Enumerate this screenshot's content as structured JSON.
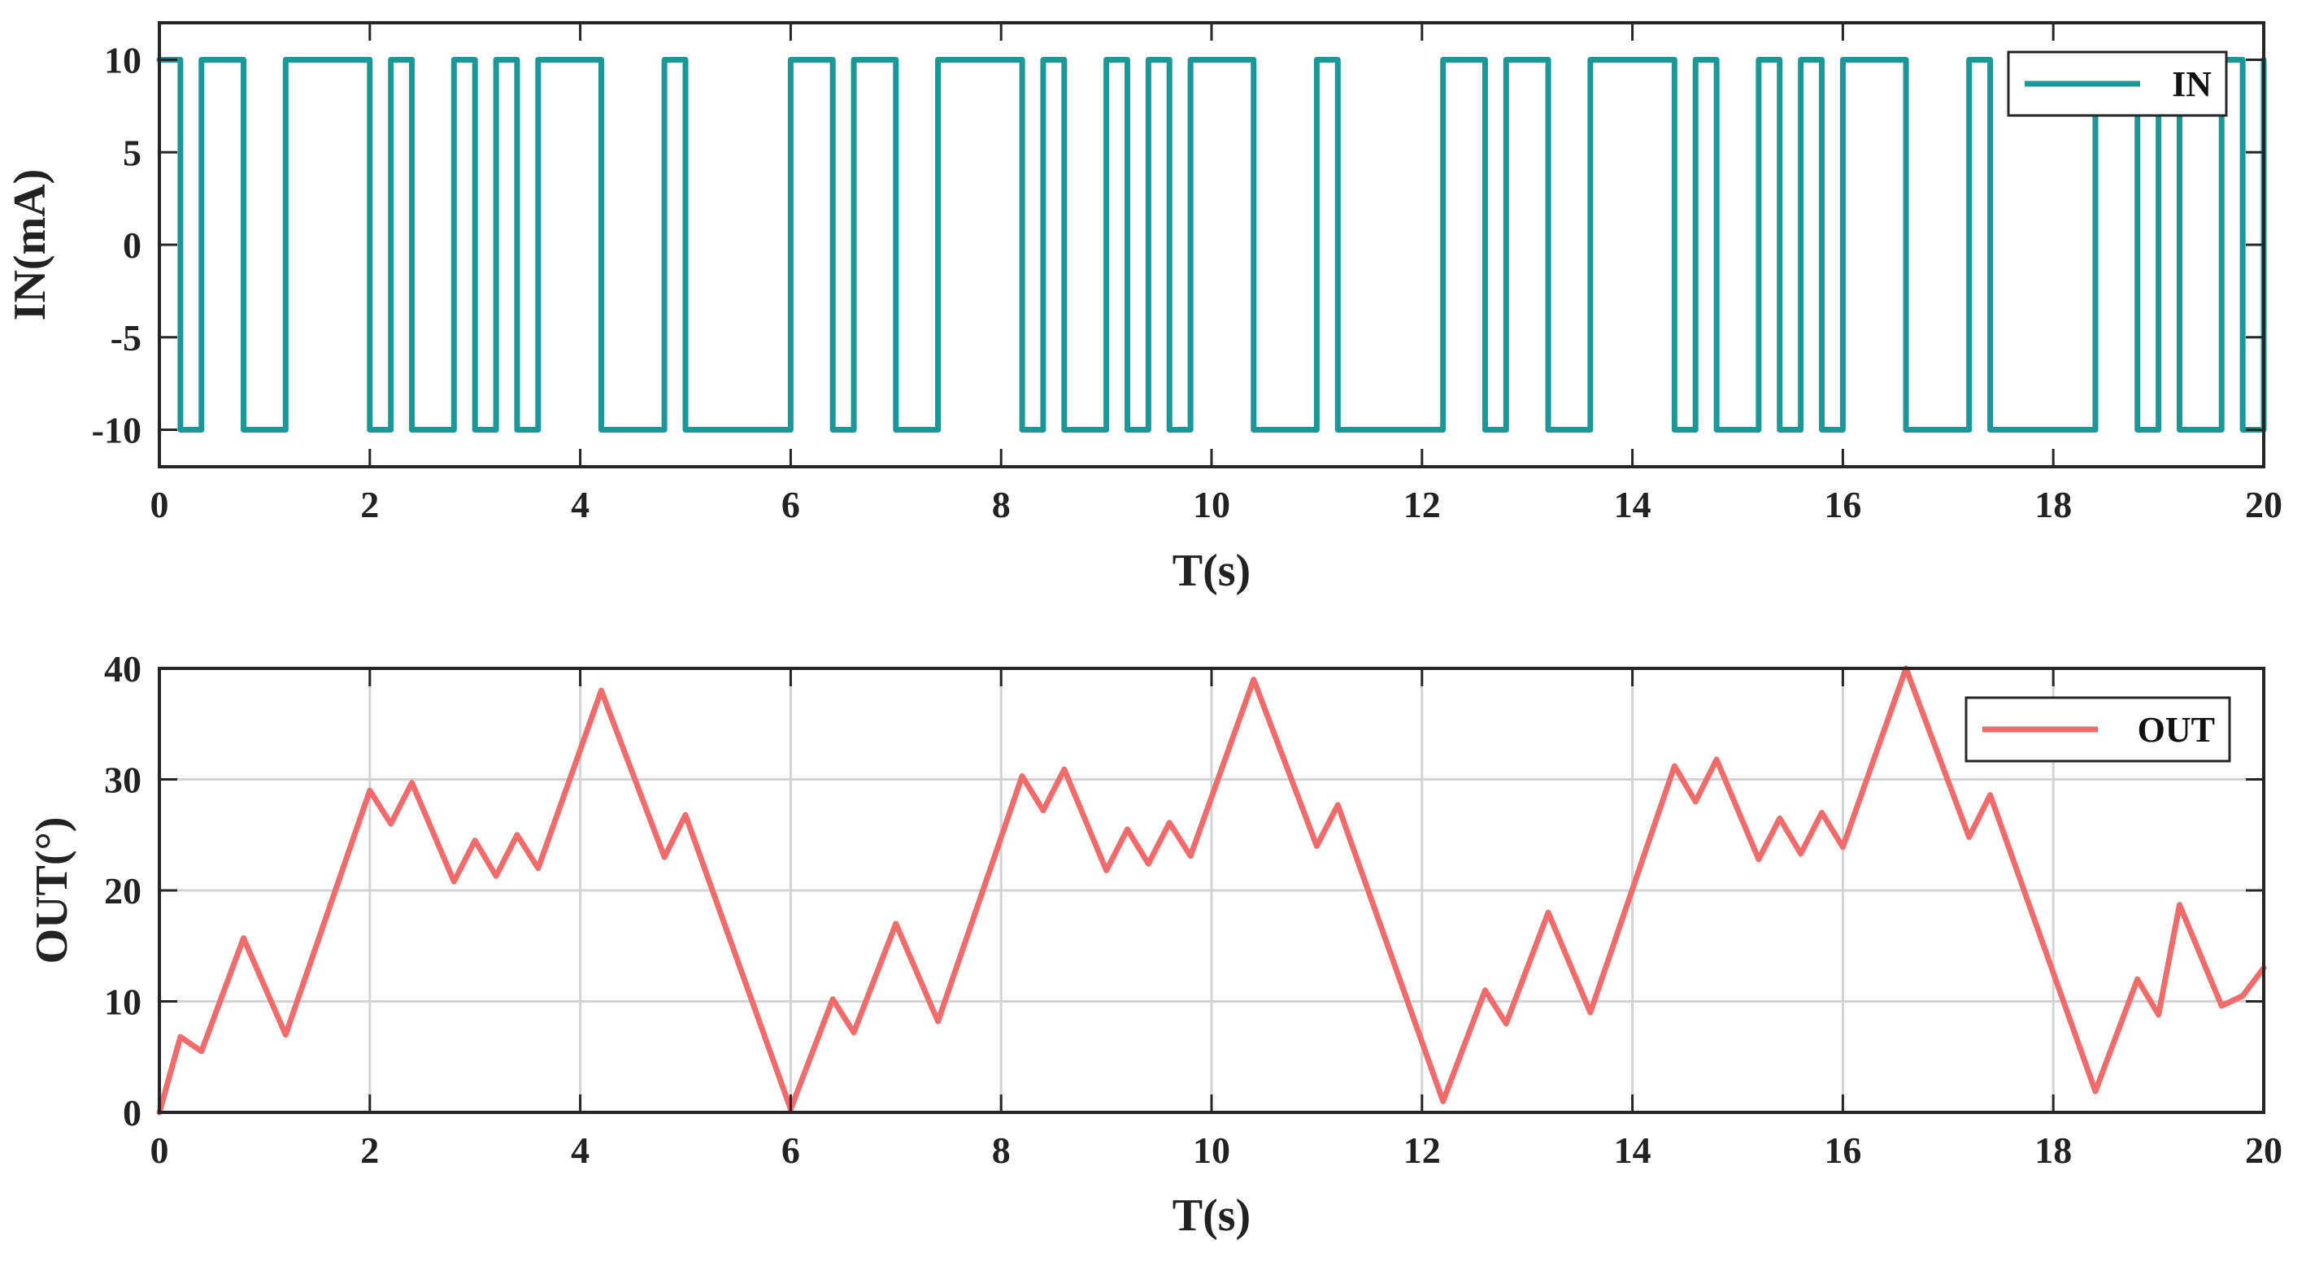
{
  "chart_data": [
    {
      "type": "line",
      "xlabel": "T(s)",
      "ylabel": "IN(mA)",
      "xlim": [
        0,
        20
      ],
      "ylim": [
        -12,
        12
      ],
      "xticks": [
        0,
        2,
        4,
        6,
        8,
        10,
        12,
        14,
        16,
        18,
        20
      ],
      "yticks": [
        -10,
        -5,
        0,
        5,
        10
      ],
      "grid": false,
      "legend_position": "top-right",
      "step": true,
      "series": [
        {
          "name": "IN",
          "color": "#1b9797",
          "x": [
            0,
            0.2,
            0.4,
            0.8,
            1.2,
            2.0,
            2.2,
            2.4,
            2.8,
            3.0,
            3.2,
            3.4,
            3.6,
            4.2,
            4.8,
            5.0,
            6.0,
            6.4,
            6.6,
            7.0,
            7.4,
            8.2,
            8.4,
            8.6,
            9.0,
            9.2,
            9.4,
            9.6,
            9.8,
            10.4,
            11.0,
            11.2,
            12.2,
            12.6,
            12.8,
            13.2,
            13.6,
            14.4,
            14.6,
            14.8,
            15.2,
            15.4,
            15.6,
            15.8,
            16.0,
            16.6,
            17.2,
            17.4,
            18.4,
            18.8,
            19.0,
            19.2,
            19.6,
            19.8,
            20.0
          ],
          "y": [
            10,
            -10,
            10,
            -10,
            10,
            -10,
            10,
            -10,
            10,
            -10,
            10,
            -10,
            10,
            -10,
            10,
            -10,
            10,
            -10,
            10,
            -10,
            10,
            -10,
            10,
            -10,
            10,
            -10,
            10,
            -10,
            10,
            -10,
            10,
            -10,
            10,
            -10,
            10,
            -10,
            10,
            -10,
            10,
            -10,
            10,
            -10,
            10,
            -10,
            10,
            -10,
            10,
            -10,
            10,
            -10,
            10,
            -10,
            10,
            -10,
            10
          ]
        }
      ]
    },
    {
      "type": "line",
      "xlabel": "T(s)",
      "ylabel": "OUT(°)",
      "xlim": [
        0,
        20
      ],
      "ylim": [
        0,
        40
      ],
      "xticks": [
        0,
        2,
        4,
        6,
        8,
        10,
        12,
        14,
        16,
        18,
        20
      ],
      "yticks": [
        0,
        10,
        20,
        30,
        40
      ],
      "grid": true,
      "legend_position": "top-right",
      "step": false,
      "series": [
        {
          "name": "OUT",
          "color": "#f26b6b",
          "x": [
            0,
            0.2,
            0.4,
            0.8,
            1.2,
            2.0,
            2.2,
            2.4,
            2.8,
            3.0,
            3.2,
            3.4,
            3.6,
            4.2,
            4.8,
            5.0,
            6.0,
            6.4,
            6.6,
            7.0,
            7.4,
            8.2,
            8.4,
            8.6,
            9.0,
            9.2,
            9.4,
            9.6,
            9.8,
            10.4,
            11.0,
            11.2,
            12.2,
            12.6,
            12.8,
            13.2,
            13.6,
            14.4,
            14.6,
            14.8,
            15.2,
            15.4,
            15.6,
            15.8,
            16.0,
            16.6,
            17.2,
            17.4,
            18.4,
            18.8,
            19.0,
            19.2,
            19.6,
            19.8,
            20.0
          ],
          "y": [
            0,
            6.8,
            5.5,
            15.7,
            7.0,
            29.0,
            26.0,
            29.7,
            20.8,
            24.5,
            21.3,
            25.0,
            22.0,
            38.0,
            23.0,
            26.8,
            0.3,
            10.2,
            7.2,
            17.0,
            8.2,
            30.3,
            27.2,
            30.9,
            21.8,
            25.5,
            22.4,
            26.1,
            23.1,
            39.0,
            24.0,
            27.7,
            1.0,
            11.0,
            8.0,
            18.0,
            9.0,
            31.2,
            28.0,
            31.8,
            22.8,
            26.5,
            23.3,
            27.0,
            23.9,
            40.0,
            24.8,
            28.6,
            1.9,
            12.0,
            8.8,
            18.7,
            9.6,
            10.5,
            13.0
          ]
        }
      ]
    }
  ]
}
